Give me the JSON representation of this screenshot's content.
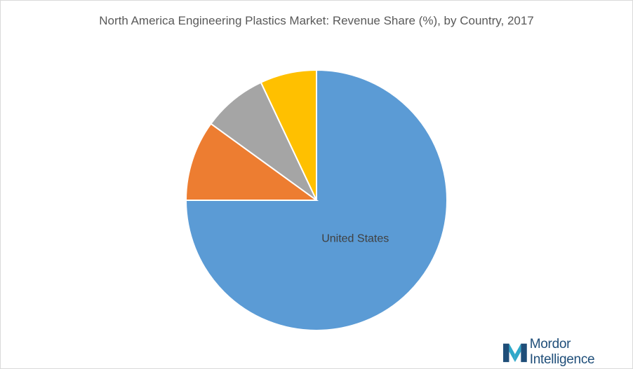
{
  "chart_data": {
    "type": "pie",
    "title": "North America Engineering Plastics Market: Revenue Share (%), by Country, 2017",
    "slices": [
      {
        "label": "United States",
        "value": 75,
        "color": "#5b9bd5",
        "show_label": true
      },
      {
        "label": "",
        "value": 10,
        "color": "#ed7d31",
        "show_label": false
      },
      {
        "label": "",
        "value": 8,
        "color": "#a5a5a5",
        "show_label": false
      },
      {
        "label": "",
        "value": 7,
        "color": "#ffc000",
        "show_label": false
      }
    ],
    "start": "12 o'clock, clockwise"
  },
  "logo": {
    "text": "Mordor Intelligence",
    "colors": {
      "dark": "#1f4e79",
      "light": "#2fa8c9"
    }
  }
}
